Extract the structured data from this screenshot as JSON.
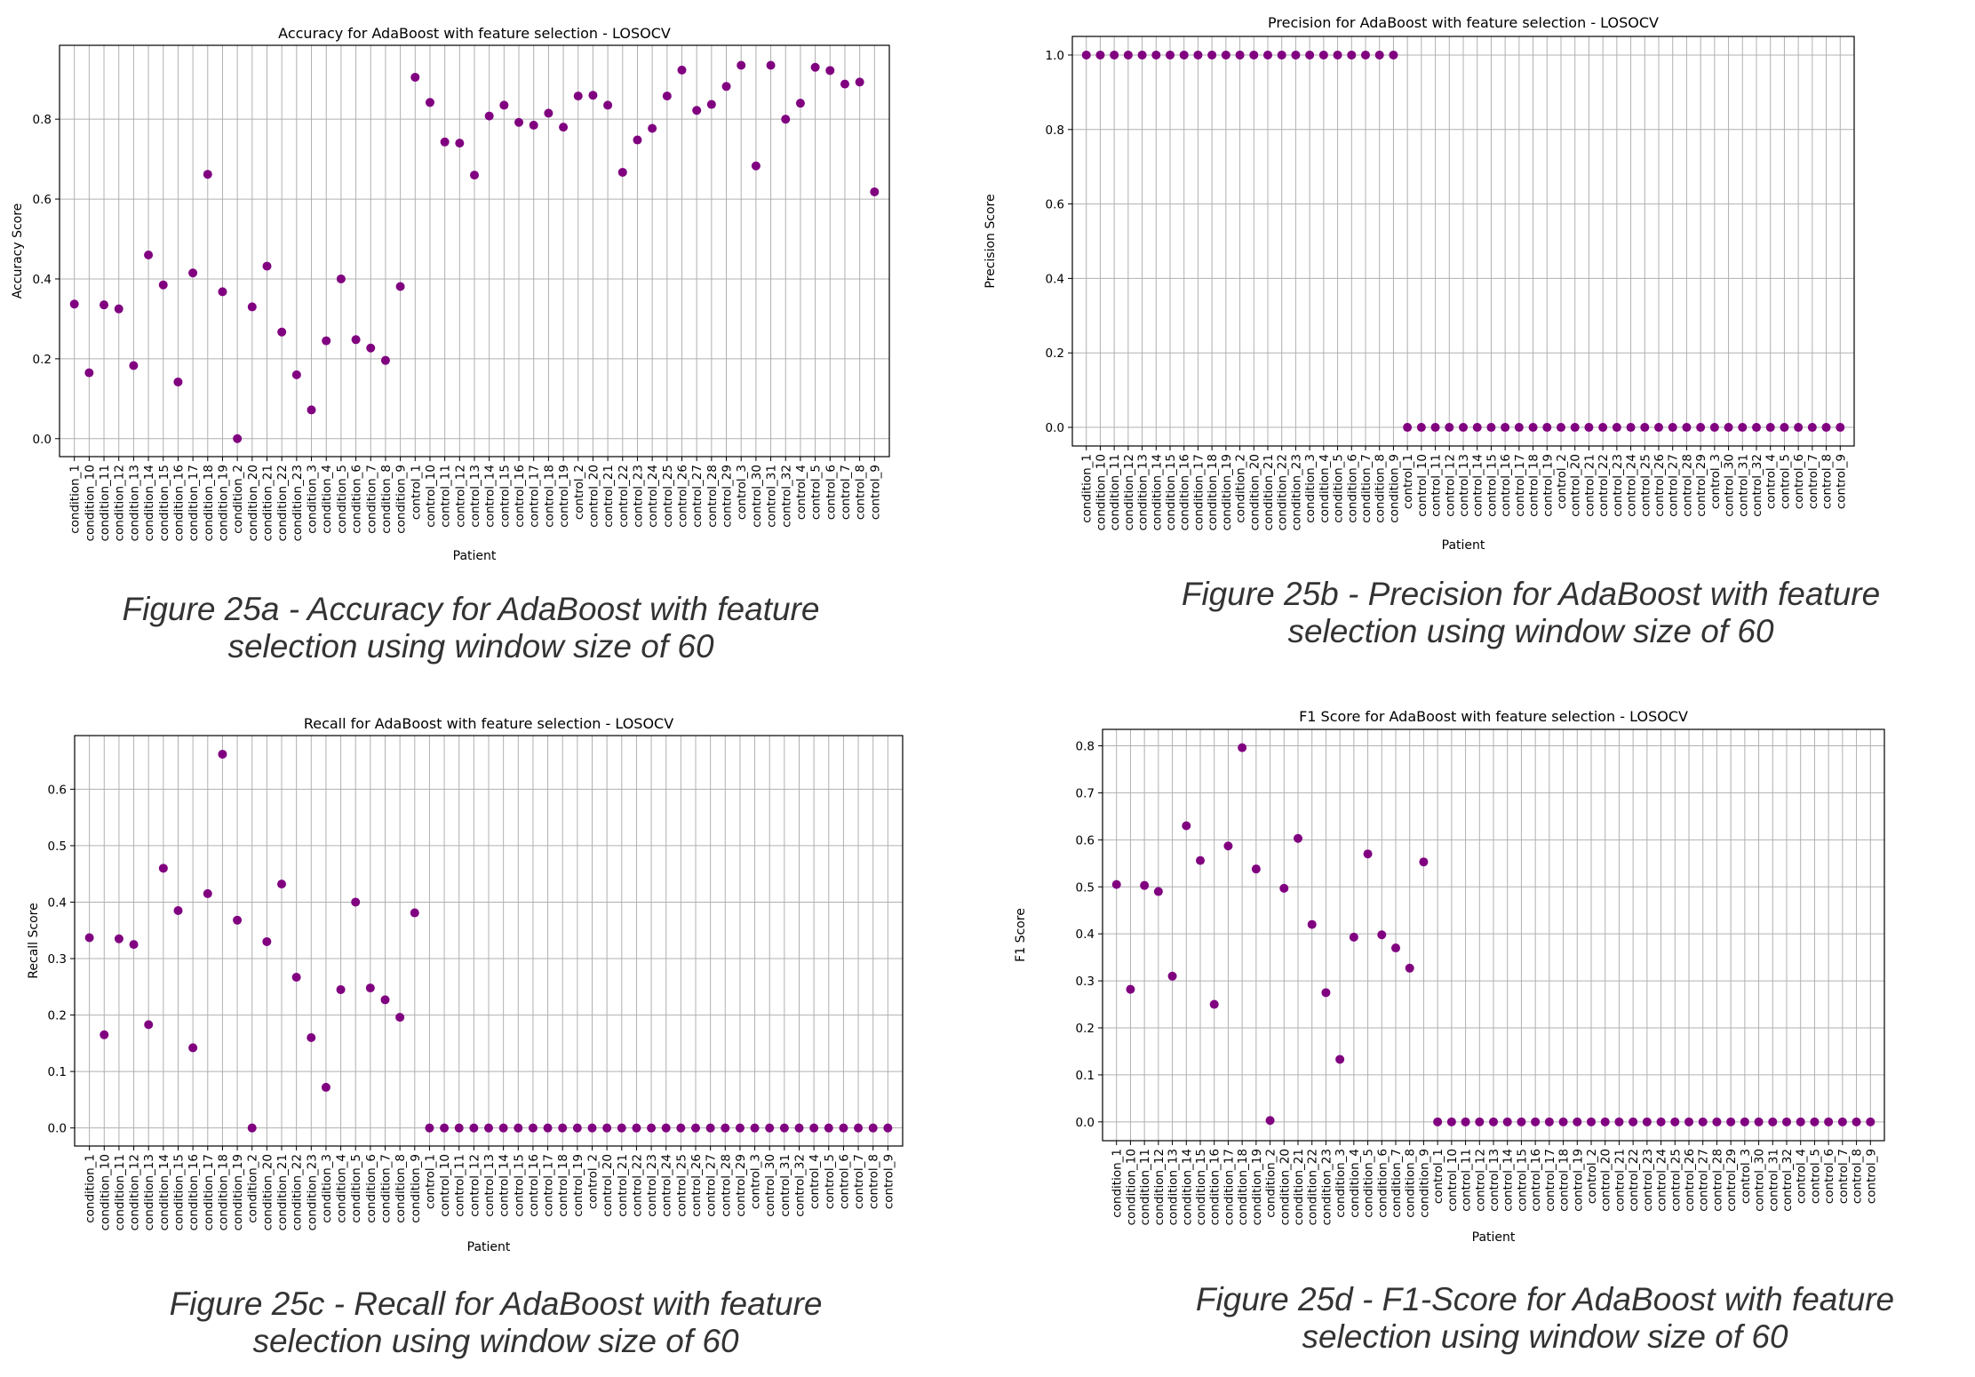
{
  "categories": [
    "condition_1",
    "condition_10",
    "condition_11",
    "condition_12",
    "condition_13",
    "condition_14",
    "condition_15",
    "condition_16",
    "condition_17",
    "condition_18",
    "condition_19",
    "condition_2",
    "condition_20",
    "condition_21",
    "condition_22",
    "condition_23",
    "condition_3",
    "condition_4",
    "condition_5",
    "condition_6",
    "condition_7",
    "condition_8",
    "condition_9",
    "control_1",
    "control_10",
    "control_11",
    "control_12",
    "control_13",
    "control_14",
    "control_15",
    "control_16",
    "control_17",
    "control_18",
    "control_19",
    "control_2",
    "control_20",
    "control_21",
    "control_22",
    "control_23",
    "control_24",
    "control_25",
    "control_26",
    "control_27",
    "control_28",
    "control_29",
    "control_3",
    "control_30",
    "control_31",
    "control_32",
    "control_4",
    "control_5",
    "control_6",
    "control_7",
    "control_8",
    "control_9"
  ],
  "marker_color": "#800080",
  "captions": {
    "a": "Figure 25a - Accuracy for AdaBoost with feature selection using window size of 60",
    "b": "Figure 25b - Precision for AdaBoost with feature selection using window size of 60",
    "c": "Figure 25c - Recall for AdaBoost with feature selection using window size of 60",
    "d": "Figure 25d - F1-Score for AdaBoost with feature selection using window size of 60"
  },
  "chart_data": [
    {
      "id": "a",
      "type": "scatter",
      "title": "Accuracy for AdaBoost with feature selection - LOSOCV",
      "xlabel": "Patient",
      "ylabel": "Accuracy Score",
      "ylim": [
        -0.045,
        0.985
      ],
      "yticks": [
        0.0,
        0.2,
        0.4,
        0.6,
        0.8
      ],
      "grid": true,
      "values": [
        0.337,
        0.165,
        0.335,
        0.325,
        0.183,
        0.46,
        0.385,
        0.142,
        0.415,
        0.662,
        0.368,
        0.0,
        0.33,
        0.432,
        0.267,
        0.16,
        0.072,
        0.245,
        0.4,
        0.248,
        0.227,
        0.196,
        0.381,
        0.905,
        0.842,
        0.743,
        0.74,
        0.66,
        0.808,
        0.835,
        0.792,
        0.785,
        0.815,
        0.78,
        0.858,
        0.86,
        0.835,
        0.667,
        0.748,
        0.777,
        0.858,
        0.923,
        0.822,
        0.837,
        0.882,
        0.935,
        0.683,
        0.935,
        0.8,
        0.84,
        0.93,
        0.922,
        0.888,
        0.893,
        0.618
      ]
    },
    {
      "id": "b",
      "type": "scatter",
      "title": "Precision for AdaBoost with feature selection - LOSOCV",
      "xlabel": "Patient",
      "ylabel": "Precision Score",
      "ylim": [
        -0.05,
        1.05
      ],
      "yticks": [
        0.0,
        0.2,
        0.4,
        0.6,
        0.8,
        1.0
      ],
      "grid": true,
      "values": [
        1,
        1,
        1,
        1,
        1,
        1,
        1,
        1,
        1,
        1,
        1,
        1,
        1,
        1,
        1,
        1,
        1,
        1,
        1,
        1,
        1,
        1,
        1,
        0,
        0,
        0,
        0,
        0,
        0,
        0,
        0,
        0,
        0,
        0,
        0,
        0,
        0,
        0,
        0,
        0,
        0,
        0,
        0,
        0,
        0,
        0,
        0,
        0,
        0,
        0,
        0,
        0,
        0,
        0,
        0
      ]
    },
    {
      "id": "c",
      "type": "scatter",
      "title": "Recall for AdaBoost with feature selection - LOSOCV",
      "xlabel": "Patient",
      "ylabel": "Recall Score",
      "ylim": [
        -0.032,
        0.695
      ],
      "yticks": [
        0.0,
        0.1,
        0.2,
        0.3,
        0.4,
        0.5,
        0.6
      ],
      "grid": true,
      "values": [
        0.337,
        0.165,
        0.335,
        0.325,
        0.183,
        0.46,
        0.385,
        0.142,
        0.415,
        0.662,
        0.368,
        0.0,
        0.33,
        0.432,
        0.267,
        0.16,
        0.072,
        0.245,
        0.4,
        0.248,
        0.227,
        0.196,
        0.381,
        0,
        0,
        0,
        0,
        0,
        0,
        0,
        0,
        0,
        0,
        0,
        0,
        0,
        0,
        0,
        0,
        0,
        0,
        0,
        0,
        0,
        0,
        0,
        0,
        0,
        0,
        0,
        0,
        0,
        0,
        0,
        0
      ]
    },
    {
      "id": "d",
      "type": "scatter",
      "title": "F1 Score for AdaBoost with feature selection - LOSOCV",
      "xlabel": "Patient",
      "ylabel": "F1 Score",
      "ylim": [
        -0.04,
        0.835
      ],
      "yticks": [
        0.0,
        0.1,
        0.2,
        0.3,
        0.4,
        0.5,
        0.6,
        0.7,
        0.8
      ],
      "grid": true,
      "values": [
        0.505,
        0.282,
        0.503,
        0.49,
        0.31,
        0.63,
        0.556,
        0.25,
        0.587,
        0.796,
        0.538,
        0.003,
        0.497,
        0.603,
        0.42,
        0.275,
        0.133,
        0.393,
        0.57,
        0.398,
        0.37,
        0.327,
        0.553,
        0,
        0,
        0,
        0,
        0,
        0,
        0,
        0,
        0,
        0,
        0,
        0,
        0,
        0,
        0,
        0,
        0,
        0,
        0,
        0,
        0,
        0,
        0,
        0,
        0,
        0,
        0,
        0,
        0,
        0,
        0,
        0
      ]
    }
  ]
}
